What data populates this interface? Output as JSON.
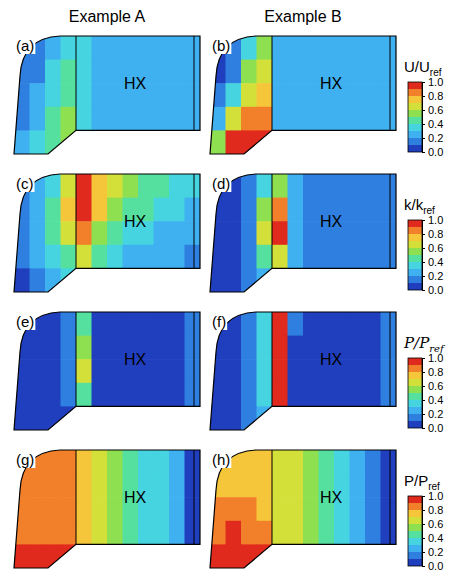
{
  "chart_data": {
    "type": "contour",
    "columns": [
      "Example A",
      "Example B"
    ],
    "rows": [
      {
        "colorbar_title": "U/Uref",
        "colorbar_range": [
          0,
          1
        ],
        "colorbar_ticks": [
          {
            "value": 0,
            "label": "0.0"
          },
          0.2,
          0.4,
          0.6,
          0.8,
          {
            "value": 1,
            "label": "1.0"
          }
        ],
        "panels": [
          {
            "label": "(a)",
            "annotation": "HX",
            "cells": [
              [
                0.1,
                0.15,
                0.25,
                0.35,
                0.3,
                0.28,
                0.27,
                0.27,
                0.27,
                0.27,
                0.27,
                0.27
              ],
              [
                0.1,
                0.15,
                0.3,
                0.4,
                0.3,
                0.28,
                0.27,
                0.27,
                0.27,
                0.27,
                0.27,
                0.27
              ],
              [
                0.1,
                0.2,
                0.35,
                0.45,
                0.3,
                0.28,
                0.27,
                0.27,
                0.27,
                0.27,
                0.27,
                0.27
              ],
              [
                0.15,
                0.25,
                0.4,
                0.5,
                0.32,
                0.28,
                0.27,
                0.27,
                0.27,
                0.27,
                0.27,
                0.27
              ],
              [
                0.2,
                0.3,
                0.45,
                0.5,
                null,
                null,
                null,
                null,
                null,
                null,
                null,
                null
              ]
            ]
          },
          {
            "label": "(b)",
            "annotation": "HX",
            "cells": [
              [
                0.05,
                0.1,
                0.3,
                0.5,
                0.22,
                0.2,
                0.2,
                0.2,
                0.2,
                0.2,
                0.2,
                0.2
              ],
              [
                0.05,
                0.15,
                0.5,
                0.6,
                0.22,
                0.2,
                0.2,
                0.2,
                0.2,
                0.2,
                0.2,
                0.2
              ],
              [
                0.1,
                0.3,
                0.6,
                0.7,
                0.22,
                0.2,
                0.2,
                0.2,
                0.2,
                0.2,
                0.2,
                0.2
              ],
              [
                0.2,
                0.6,
                0.8,
                0.8,
                0.22,
                0.2,
                0.2,
                0.2,
                0.2,
                0.2,
                0.2,
                0.2
              ],
              [
                0.5,
                0.9,
                1.0,
                0.9,
                null,
                null,
                null,
                null,
                null,
                null,
                null,
                null
              ]
            ]
          }
        ]
      },
      {
        "colorbar_title": "k/kref",
        "colorbar_range": [
          0,
          1
        ],
        "colorbar_ticks": [
          {
            "value": 0,
            "label": "0.0"
          },
          0.2,
          0.4,
          0.6,
          0.8,
          {
            "value": 1,
            "label": "1.0"
          }
        ],
        "panels": [
          {
            "label": "(c)",
            "annotation": "HX",
            "cells": [
              [
                0.1,
                0.2,
                0.35,
                0.6,
                0.9,
                0.75,
                0.6,
                0.5,
                0.45,
                0.4,
                0.35,
                0.3
              ],
              [
                0.1,
                0.25,
                0.4,
                0.7,
                1.0,
                0.7,
                0.55,
                0.45,
                0.4,
                0.35,
                0.3,
                0.25
              ],
              [
                0.1,
                0.25,
                0.4,
                0.6,
                0.85,
                0.55,
                0.45,
                0.35,
                0.3,
                0.28,
                0.25,
                0.2
              ],
              [
                0.1,
                0.2,
                0.3,
                0.45,
                0.6,
                0.4,
                0.3,
                0.25,
                0.22,
                0.2,
                0.2,
                0.18
              ],
              [
                0.05,
                0.1,
                0.2,
                0.3,
                null,
                null,
                null,
                null,
                null,
                null,
                null,
                null
              ]
            ]
          },
          {
            "label": "(d)",
            "annotation": "HX",
            "cells": [
              [
                0.05,
                0.05,
                0.1,
                0.3,
                0.5,
                0.2,
                0.15,
                0.12,
                0.1,
                0.1,
                0.1,
                0.1
              ],
              [
                0.05,
                0.05,
                0.15,
                0.5,
                0.8,
                0.25,
                0.15,
                0.12,
                0.1,
                0.1,
                0.1,
                0.1
              ],
              [
                0.05,
                0.05,
                0.15,
                0.6,
                0.9,
                0.25,
                0.15,
                0.12,
                0.1,
                0.1,
                0.1,
                0.1
              ],
              [
                0.05,
                0.05,
                0.1,
                0.4,
                0.6,
                0.2,
                0.12,
                0.1,
                0.1,
                0.1,
                0.1,
                0.1
              ],
              [
                0.05,
                0.05,
                0.1,
                0.2,
                null,
                null,
                null,
                null,
                null,
                null,
                null,
                null
              ]
            ]
          }
        ]
      },
      {
        "colorbar_title": "P/Pref",
        "colorbar_range": [
          0,
          1
        ],
        "colorbar_ticks": [
          {
            "value": 0,
            "label": "0.0"
          },
          0.2,
          0.4,
          0.6,
          0.8,
          {
            "value": 1,
            "label": "1.0"
          }
        ],
        "panels": [
          {
            "label": "(e)",
            "annotation": "HX",
            "cells": [
              [
                0.05,
                0.05,
                0.05,
                0.1,
                0.4,
                0.05,
                0.02,
                0.05,
                0.05,
                0.05,
                0.05,
                0.1
              ],
              [
                0.05,
                0.05,
                0.05,
                0.15,
                0.5,
                0.05,
                0.05,
                0.05,
                0.02,
                0.05,
                0.05,
                0.1
              ],
              [
                0.05,
                0.05,
                0.05,
                0.15,
                0.6,
                0.05,
                0.05,
                0.05,
                0.05,
                0.05,
                0.05,
                0.1
              ],
              [
                0.05,
                0.05,
                0.05,
                0.1,
                0.4,
                0.05,
                0.05,
                0.05,
                0.05,
                0.05,
                0.05,
                0.1
              ],
              [
                0.05,
                0.05,
                0.05,
                0.05,
                null,
                null,
                null,
                null,
                null,
                null,
                null,
                null
              ]
            ]
          },
          {
            "label": "(f)",
            "annotation": "HX",
            "cells": [
              [
                0.05,
                0.05,
                0.1,
                0.3,
                1.0,
                0.1,
                0.05,
                0.05,
                0.05,
                0.05,
                0.05,
                0.1
              ],
              [
                0.05,
                0.05,
                0.1,
                0.3,
                1.0,
                0.05,
                0.05,
                0.05,
                0.05,
                0.05,
                0.05,
                0.1
              ],
              [
                0.05,
                0.05,
                0.1,
                0.3,
                1.0,
                0.05,
                0.05,
                0.05,
                0.05,
                0.05,
                0.05,
                0.1
              ],
              [
                0.05,
                0.05,
                0.1,
                0.3,
                0.9,
                0.05,
                0.05,
                0.05,
                0.05,
                0.05,
                0.05,
                0.1
              ],
              [
                0.05,
                0.05,
                0.1,
                0.2,
                null,
                null,
                null,
                null,
                null,
                null,
                null,
                null
              ]
            ]
          }
        ]
      },
      {
        "colorbar_title": "P/Pref",
        "colorbar_range": [
          0,
          1
        ],
        "colorbar_ticks": [
          {
            "value": 0,
            "label": "0.0"
          },
          0.2,
          0.4,
          0.6,
          0.8,
          {
            "value": 1,
            "label": "1.0"
          }
        ],
        "panels": [
          {
            "label": "(g)",
            "annotation": "HX",
            "cells": [
              [
                0.8,
                0.8,
                0.8,
                0.8,
                0.74,
                0.66,
                0.57,
                0.48,
                0.39,
                0.3,
                0.2,
                0.08
              ],
              [
                0.8,
                0.8,
                0.8,
                0.8,
                0.74,
                0.66,
                0.57,
                0.48,
                0.39,
                0.3,
                0.2,
                0.08
              ],
              [
                0.82,
                0.82,
                0.8,
                0.8,
                0.74,
                0.66,
                0.57,
                0.48,
                0.39,
                0.3,
                0.2,
                0.08
              ],
              [
                0.85,
                0.85,
                0.82,
                0.8,
                0.74,
                0.66,
                0.57,
                0.48,
                0.39,
                0.3,
                0.2,
                0.08
              ],
              [
                0.95,
                0.95,
                0.92,
                0.9,
                null,
                null,
                null,
                null,
                null,
                null,
                null,
                null
              ]
            ]
          },
          {
            "label": "(h)",
            "annotation": "HX",
            "cells": [
              [
                0.75,
                0.75,
                0.75,
                0.72,
                0.68,
                0.6,
                0.52,
                0.43,
                0.34,
                0.25,
                0.15,
                0.03
              ],
              [
                0.78,
                0.78,
                0.78,
                0.74,
                0.68,
                0.6,
                0.52,
                0.43,
                0.34,
                0.25,
                0.15,
                0.03
              ],
              [
                0.8,
                0.82,
                0.8,
                0.76,
                0.68,
                0.6,
                0.52,
                0.43,
                0.34,
                0.25,
                0.15,
                0.03
              ],
              [
                0.85,
                0.9,
                0.85,
                0.8,
                0.68,
                0.6,
                0.52,
                0.43,
                0.34,
                0.25,
                0.15,
                0.03
              ],
              [
                0.95,
                1.0,
                0.95,
                0.9,
                null,
                null,
                null,
                null,
                null,
                null,
                null,
                null
              ]
            ]
          }
        ]
      }
    ]
  }
}
